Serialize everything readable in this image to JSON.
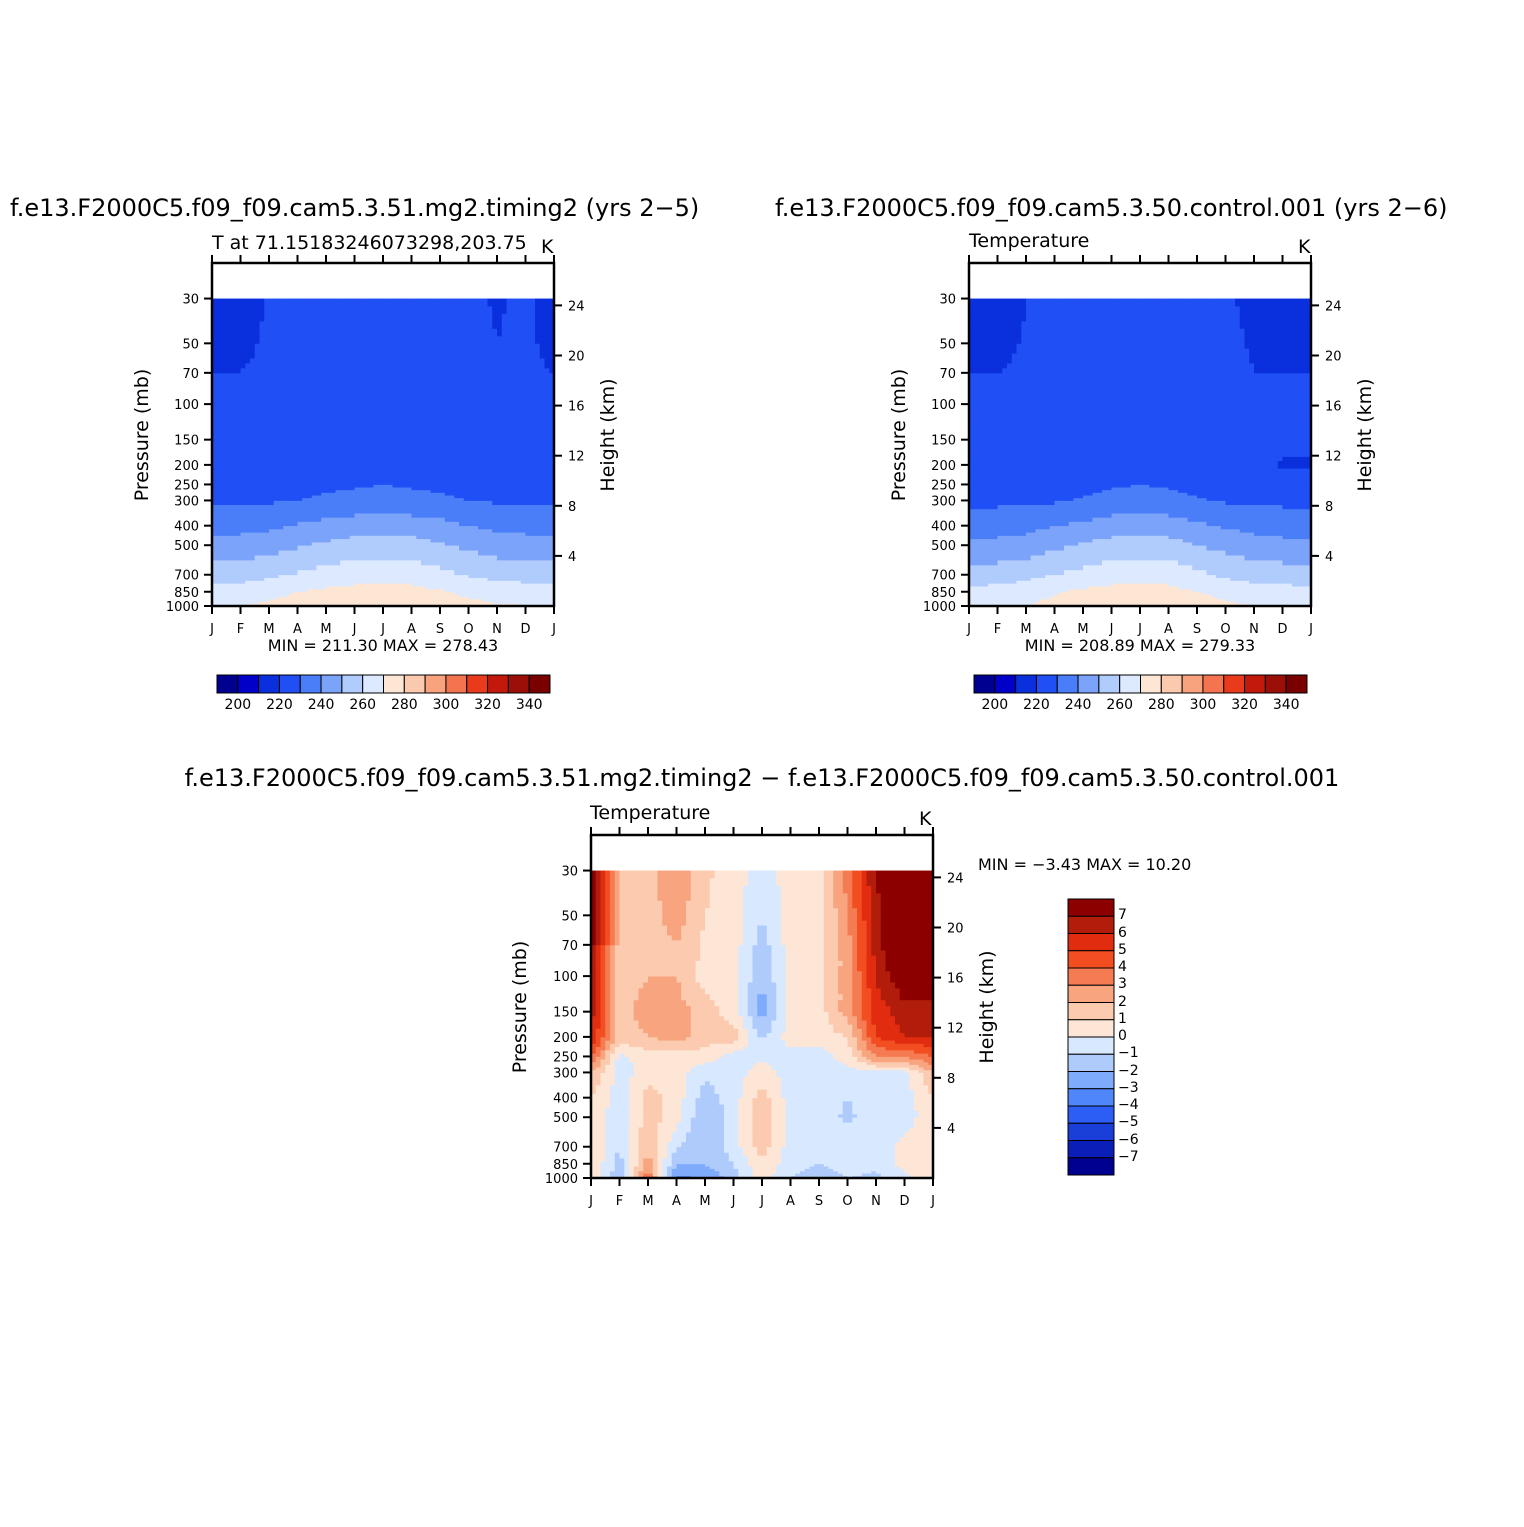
{
  "panels": [
    {
      "case_title": "f.e13.F2000C5.f09_f09.cam5.3.51.mg2.timing2 (yrs 2−5)",
      "subtitle": "T at 71.15183246073298,203.75",
      "units": "K",
      "minmax": "MIN = 211.30 MAX = 278.43",
      "colorbar_ticks": [
        "200",
        "220",
        "240",
        "260",
        "280",
        "300",
        "320",
        "340"
      ]
    },
    {
      "case_title": "f.e13.F2000C5.f09_f09.cam5.3.50.control.001 (yrs 2−6)",
      "subtitle": "Temperature",
      "units": "K",
      "minmax": "MIN = 208.89 MAX = 279.33",
      "colorbar_ticks": [
        "200",
        "220",
        "240",
        "260",
        "280",
        "300",
        "320",
        "340"
      ]
    },
    {
      "case_title": "f.e13.F2000C5.f09_f09.cam5.3.51.mg2.timing2 − f.e13.F2000C5.f09_f09.cam5.3.50.control.001",
      "subtitle": "Temperature",
      "units": "K",
      "minmax": "MIN = −3.43 MAX = 10.20",
      "colorbar_ticks": [
        "7",
        "6",
        "5",
        "4",
        "3",
        "2",
        "1",
        "0",
        "−1",
        "−2",
        "−3",
        "−4",
        "−5",
        "−6",
        "−7"
      ]
    }
  ],
  "axes": {
    "y_left_label": "Pressure (mb)",
    "y_right_label": "Height (km)",
    "pressure_ticks": [
      "30",
      "50",
      "70",
      "100",
      "150",
      "200",
      "250",
      "300",
      "400",
      "500",
      "700",
      "850",
      "1000"
    ],
    "height_ticks": [
      "24",
      "20",
      "16",
      "12",
      "8",
      "4"
    ],
    "month_ticks": [
      "J",
      "F",
      "M",
      "A",
      "M",
      "J",
      "J",
      "A",
      "S",
      "O",
      "N",
      "D",
      "J"
    ]
  },
  "colors": {
    "abs_scale": [
      "#000090",
      "#0000c8",
      "#0a2fdc",
      "#1f4ff5",
      "#4a7ef8",
      "#7ba3fa",
      "#b0ccfc",
      "#dde9fe",
      "#fde6d3",
      "#fbc9ae",
      "#f8a27e",
      "#f47450",
      "#e93b1c",
      "#c3180c",
      "#9b0f08",
      "#7a0000"
    ],
    "diff_scale": [
      "#000090",
      "#0a1eb8",
      "#1a3ed8",
      "#2c5ef5",
      "#4f87fa",
      "#7eabfb",
      "#aecbfc",
      "#d8e8fe",
      "#fde6d6",
      "#fbcaaf",
      "#f8a47f",
      "#f57b52",
      "#f24e22",
      "#e22c10",
      "#b21c0a",
      "#8c0000"
    ]
  },
  "chart_data": [
    {
      "type": "heatmap",
      "title": "f.e13.F2000C5.f09_f09.cam5.3.51.mg2.timing2 (yrs 2−5)",
      "subtitle": "T at 71.15183246073298,203.75",
      "x": [
        "J",
        "F",
        "M",
        "A",
        "M",
        "J",
        "J",
        "A",
        "S",
        "O",
        "N",
        "D",
        "J"
      ],
      "y_pressure_mb": [
        1000,
        850,
        700,
        500,
        400,
        300,
        250,
        200,
        150,
        100,
        70,
        50,
        30
      ],
      "values": [
        [
          269,
          270,
          272,
          274,
          276,
          277,
          278,
          277,
          275,
          273,
          271,
          270,
          269
        ],
        [
          264,
          265,
          267,
          270,
          272,
          273,
          274,
          273,
          271,
          268,
          266,
          265,
          264
        ],
        [
          255,
          256,
          258,
          261,
          264,
          266,
          267,
          266,
          263,
          259,
          257,
          256,
          255
        ],
        [
          243,
          244,
          246,
          249,
          252,
          254,
          255,
          254,
          251,
          248,
          245,
          244,
          243
        ],
        [
          236,
          237,
          238,
          241,
          243,
          245,
          246,
          245,
          243,
          240,
          238,
          237,
          236
        ],
        [
          228,
          228,
          229,
          230,
          232,
          233,
          234,
          233,
          232,
          230,
          229,
          228,
          228
        ],
        [
          225,
          225,
          226,
          227,
          228,
          229,
          230,
          229,
          228,
          227,
          226,
          225,
          225
        ],
        [
          224,
          224,
          224,
          225,
          226,
          227,
          227,
          226,
          225,
          224,
          224,
          224,
          224
        ],
        [
          223,
          223,
          224,
          226,
          227,
          227,
          227,
          227,
          226,
          225,
          224,
          223,
          223
        ],
        [
          222,
          222,
          224,
          227,
          227,
          227,
          227,
          227,
          227,
          225,
          222,
          221,
          222
        ],
        [
          220,
          220,
          223,
          227,
          227,
          227,
          227,
          227,
          227,
          224,
          221,
          222,
          220
        ],
        [
          217,
          217,
          222,
          227,
          227,
          227,
          227,
          227,
          226,
          223,
          220,
          222,
          217
        ],
        [
          214,
          214,
          221,
          227,
          227,
          227,
          227,
          227,
          225,
          222,
          219,
          222,
          214
        ]
      ],
      "levels": [
        190,
        200,
        210,
        220,
        230,
        240,
        250,
        260,
        270,
        280,
        290,
        300,
        310,
        320,
        330,
        340,
        350
      ],
      "xlabel": "",
      "ylabel": "Pressure (mb)",
      "ylabel_right": "Height (km)",
      "min": 211.3,
      "max": 278.43
    },
    {
      "type": "heatmap",
      "title": "f.e13.F2000C5.f09_f09.cam5.3.50.control.001 (yrs 2−6)",
      "subtitle": "Temperature",
      "x": [
        "J",
        "F",
        "M",
        "A",
        "M",
        "J",
        "J",
        "A",
        "S",
        "O",
        "N",
        "D",
        "J"
      ],
      "y_pressure_mb": [
        1000,
        850,
        700,
        500,
        400,
        300,
        250,
        200,
        150,
        100,
        70,
        50,
        30
      ],
      "values": [
        [
          268,
          269,
          270,
          273,
          276,
          277,
          278,
          277,
          275,
          272,
          270,
          269,
          268
        ],
        [
          263,
          264,
          266,
          269,
          272,
          273,
          274,
          273,
          270,
          267,
          265,
          264,
          263
        ],
        [
          254,
          255,
          257,
          260,
          263,
          266,
          267,
          266,
          262,
          258,
          256,
          255,
          254
        ],
        [
          242,
          243,
          244,
          248,
          251,
          254,
          255,
          254,
          250,
          247,
          244,
          243,
          242
        ],
        [
          235,
          236,
          237,
          240,
          242,
          245,
          246,
          245,
          242,
          239,
          237,
          236,
          235
        ],
        [
          228,
          228,
          228,
          229,
          231,
          233,
          234,
          233,
          231,
          229,
          228,
          228,
          228
        ],
        [
          225,
          225,
          225,
          226,
          227,
          229,
          230,
          229,
          227,
          226,
          225,
          225,
          225
        ],
        [
          224,
          224,
          224,
          224,
          225,
          227,
          229,
          226,
          224,
          224,
          223,
          219,
          219
        ],
        [
          223,
          223,
          223,
          225,
          227,
          227,
          227,
          227,
          226,
          225,
          223,
          222,
          222
        ],
        [
          222,
          222,
          223,
          226,
          227,
          227,
          227,
          227,
          227,
          225,
          222,
          221,
          221
        ],
        [
          220,
          220,
          222,
          226,
          227,
          227,
          227,
          227,
          227,
          223,
          220,
          220,
          220
        ],
        [
          217,
          217,
          221,
          226,
          227,
          227,
          227,
          227,
          225,
          222,
          219,
          219,
          219
        ],
        [
          214,
          214,
          220,
          226,
          227,
          227,
          227,
          227,
          224,
          221,
          218,
          217,
          217
        ]
      ],
      "levels": [
        190,
        200,
        210,
        220,
        230,
        240,
        250,
        260,
        270,
        280,
        290,
        300,
        310,
        320,
        330,
        340,
        350
      ],
      "xlabel": "",
      "ylabel": "Pressure (mb)",
      "ylabel_right": "Height (km)",
      "min": 208.89,
      "max": 279.33
    },
    {
      "type": "heatmap",
      "title": "f.e13.F2000C5.f09_f09.cam5.3.51.mg2.timing2 − f.e13.F2000C5.f09_f09.cam5.3.50.control.001",
      "subtitle": "Temperature",
      "x": [
        "J",
        "F",
        "M",
        "A",
        "M",
        "J",
        "J",
        "A",
        "S",
        "O",
        "N",
        "D",
        "J"
      ],
      "y_pressure_mb": [
        1000,
        850,
        700,
        500,
        400,
        300,
        250,
        200,
        150,
        100,
        70,
        50,
        30
      ],
      "values": [
        [
          1.0,
          -1.8,
          4.0,
          -3.2,
          -3.0,
          -1.5,
          0.5,
          -1.0,
          -1.5,
          -1.0,
          -1.2,
          -0.5,
          1.0
        ],
        [
          1.0,
          -1.5,
          2.5,
          -2.0,
          -2.0,
          -1.0,
          0.8,
          -0.6,
          -1.0,
          -0.6,
          -0.8,
          0.5,
          1.0
        ],
        [
          1.0,
          -1.0,
          2.0,
          -1.0,
          -2.0,
          -0.5,
          1.5,
          -0.5,
          -0.8,
          -0.5,
          -0.8,
          0.5,
          1.0
        ],
        [
          1.0,
          -1.0,
          1.5,
          0.5,
          -2.0,
          -0.5,
          1.8,
          -0.5,
          -0.5,
          -1.2,
          -0.5,
          -0.8,
          1.0
        ],
        [
          1.0,
          -0.5,
          1.5,
          0.5,
          -1.5,
          -0.5,
          1.5,
          -0.5,
          -0.5,
          -1.0,
          -0.5,
          -0.5,
          1.0
        ],
        [
          2.0,
          -0.5,
          0.5,
          0.5,
          -0.8,
          -0.5,
          0.5,
          -0.5,
          -0.5,
          -0.5,
          -0.3,
          -0.3,
          2.0
        ],
        [
          4.0,
          -0.3,
          0.5,
          0.5,
          0.5,
          -0.5,
          -0.2,
          -0.5,
          -0.5,
          0.5,
          3.0,
          3.0,
          4.0
        ],
        [
          6.0,
          1.5,
          2.0,
          2.5,
          1.5,
          1.5,
          -1.2,
          0.5,
          0.5,
          1.0,
          5.0,
          6.0,
          6.0
        ],
        [
          6.5,
          1.5,
          2.5,
          2.5,
          1.5,
          0.5,
          -2.5,
          0.5,
          0.5,
          2.5,
          5.5,
          6.5,
          6.5
        ],
        [
          7.0,
          1.5,
          2.0,
          2.0,
          0.5,
          0.5,
          -2.0,
          0.5,
          0.5,
          2.5,
          6.0,
          8.0,
          8.0
        ],
        [
          7.5,
          1.5,
          1.5,
          2.0,
          0.8,
          0.5,
          -1.5,
          0.5,
          0.5,
          2.5,
          6.5,
          9.0,
          9.5
        ],
        [
          8.0,
          1.5,
          1.5,
          2.5,
          1.0,
          0.5,
          -1.0,
          0.5,
          0.5,
          3.0,
          6.5,
          9.5,
          10.0
        ],
        [
          8.5,
          1.5,
          1.5,
          3.0,
          1.2,
          0.5,
          -0.5,
          0.5,
          0.5,
          3.5,
          7.0,
          10.0,
          10.2
        ]
      ],
      "levels": [
        -8,
        -7,
        -6,
        -5,
        -4,
        -3,
        -2,
        -1,
        0,
        1,
        2,
        3,
        4,
        5,
        6,
        7,
        8
      ],
      "xlabel": "",
      "ylabel": "Pressure (mb)",
      "ylabel_right": "Height (km)",
      "min": -3.43,
      "max": 10.2
    }
  ]
}
